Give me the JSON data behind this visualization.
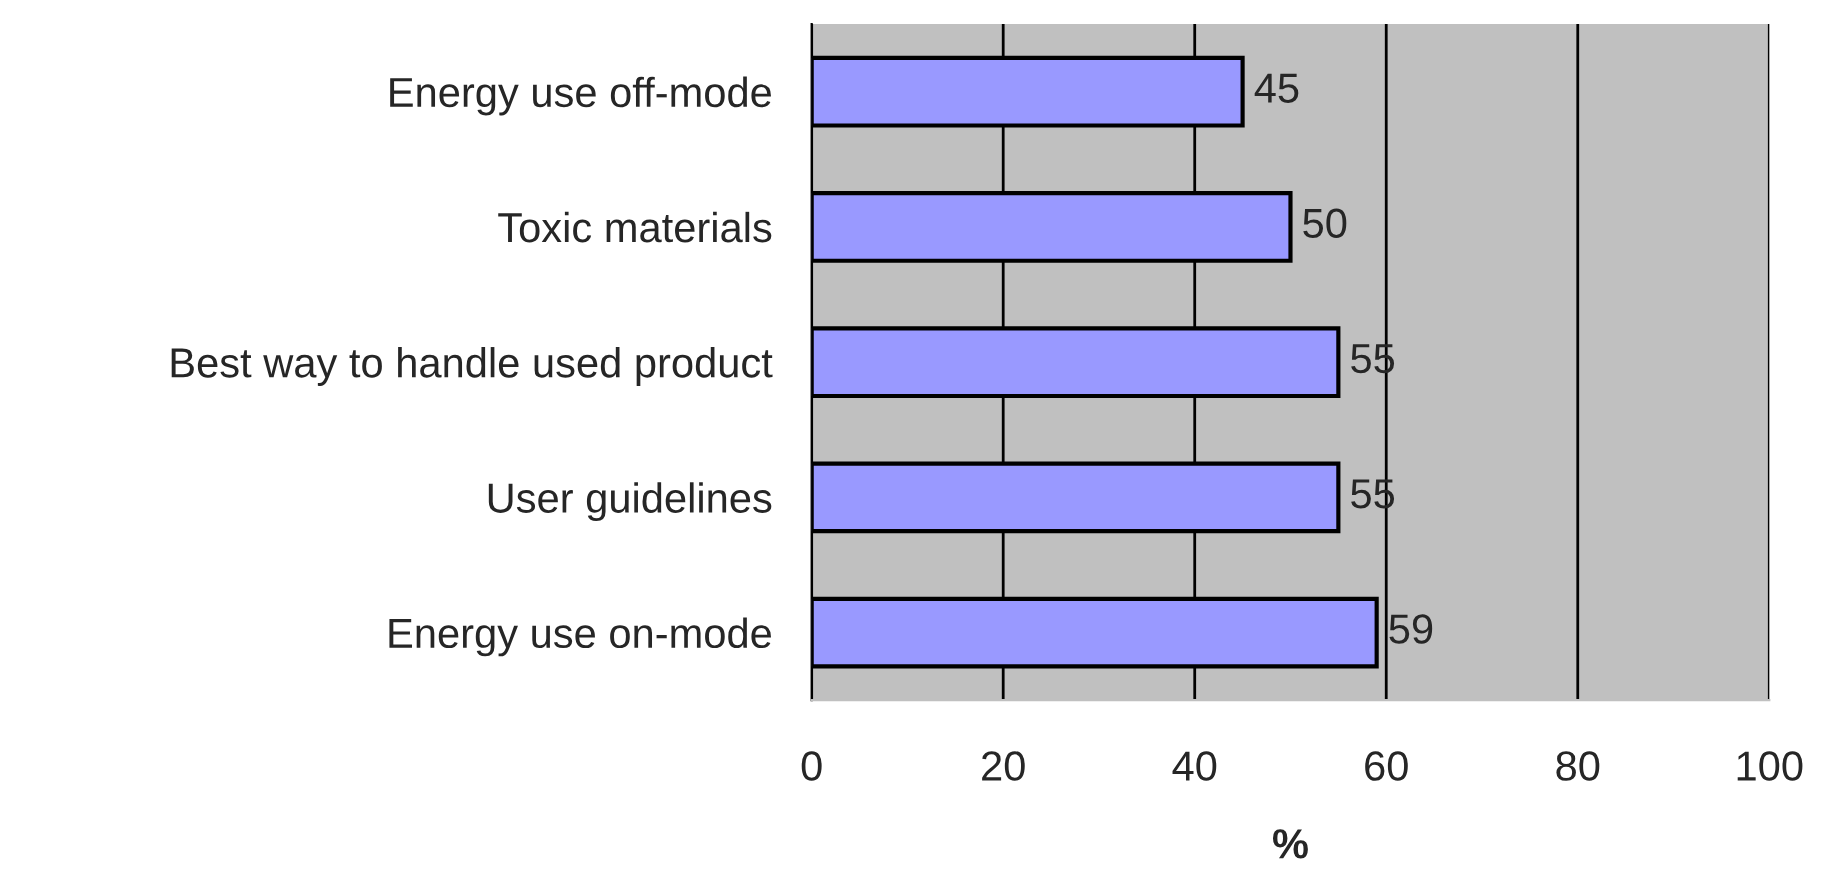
{
  "chart_data": {
    "type": "bar",
    "orientation": "horizontal",
    "xlabel": "%",
    "categories": [
      "Energy use off-mode",
      "Toxic materials",
      "Best way to handle used product",
      "User guidelines",
      "Energy use on-mode"
    ],
    "values": [
      45,
      50,
      55,
      55,
      59
    ],
    "color": "#9999ff",
    "xlim": [
      0,
      100
    ],
    "xticks": [
      0,
      20,
      40,
      60,
      80,
      100
    ],
    "grid": "x",
    "data_labels": true
  }
}
